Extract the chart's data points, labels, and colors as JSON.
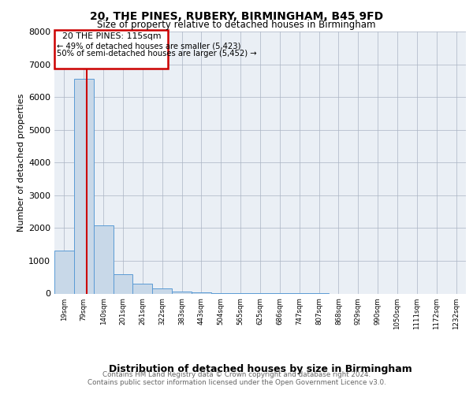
{
  "title1": "20, THE PINES, RUBERY, BIRMINGHAM, B45 9FD",
  "title2": "Size of property relative to detached houses in Birmingham",
  "xlabel": "Distribution of detached houses by size in Birmingham",
  "ylabel": "Number of detached properties",
  "bin_labels": [
    "19sqm",
    "79sqm",
    "140sqm",
    "201sqm",
    "261sqm",
    "322sqm",
    "383sqm",
    "443sqm",
    "504sqm",
    "565sqm",
    "625sqm",
    "686sqm",
    "747sqm",
    "807sqm",
    "868sqm",
    "929sqm",
    "990sqm",
    "1050sqm",
    "1111sqm",
    "1172sqm",
    "1232sqm"
  ],
  "bar_values": [
    1300,
    6550,
    2080,
    580,
    290,
    150,
    60,
    30,
    20,
    10,
    5,
    2,
    1,
    1,
    0,
    0,
    0,
    0,
    0,
    0,
    0
  ],
  "bar_color": "#c8d8e8",
  "bar_edge_color": "#5b9bd5",
  "property_label": "20 THE PINES: 115sqm",
  "annotation_line1": "← 49% of detached houses are smaller (5,423)",
  "annotation_line2": "50% of semi-detached houses are larger (5,452) →",
  "vline_color": "#cc0000",
  "vline_x_bin": 1.15,
  "footer1": "Contains HM Land Registry data © Crown copyright and database right 2024.",
  "footer2": "Contains public sector information licensed under the Open Government Licence v3.0.",
  "ylim": [
    0,
    8000
  ],
  "yticks": [
    0,
    1000,
    2000,
    3000,
    4000,
    5000,
    6000,
    7000,
    8000
  ],
  "plot_bg_color": "#eaeff5"
}
